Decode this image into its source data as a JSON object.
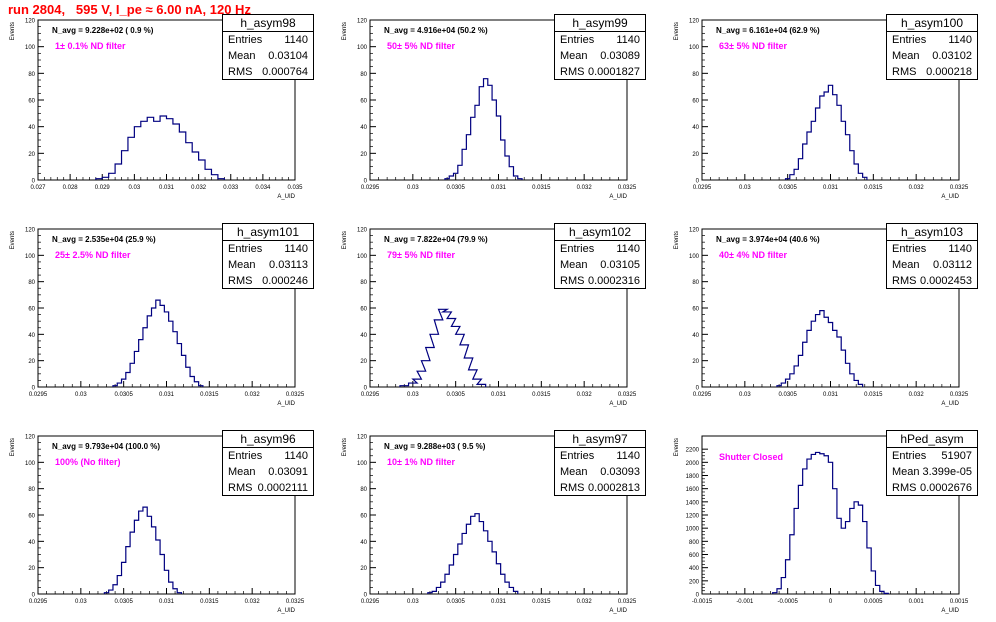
{
  "run_title": "run 2804,   595 V, I_pe ≈ 6.00 nA, 120 Hz",
  "panels": [
    {
      "name": "h_asym98",
      "navg": "N_avg = 9.228e+02 ( 0.9 %)",
      "note": "1± 0.1% ND filter",
      "entries": "1140",
      "mean": "0.03104",
      "rms": "0.000764",
      "ylabel": "Events",
      "xlabel": "A_UID"
    },
    {
      "name": "h_asym99",
      "navg": "N_avg = 4.916e+04 (50.2 %)",
      "note": "50± 5% ND filter",
      "entries": "1140",
      "mean": "0.03089",
      "rms": "0.0001827",
      "ylabel": "Events",
      "xlabel": "A_UID"
    },
    {
      "name": "h_asym100",
      "navg": "N_avg = 6.161e+04 (62.9 %)",
      "note": "63± 5% ND filter",
      "entries": "1140",
      "mean": "0.03102",
      "rms": "0.000218",
      "ylabel": "Events",
      "xlabel": "A_UID"
    },
    {
      "name": "h_asym101",
      "navg": "N_avg = 2.535e+04 (25.9 %)",
      "note": "25± 2.5% ND filter",
      "entries": "1140",
      "mean": "0.03113",
      "rms": "0.000246",
      "ylabel": "Events",
      "xlabel": "A_UID"
    },
    {
      "name": "h_asym102",
      "navg": "N_avg = 7.822e+04 (79.9 %)",
      "note": "79± 5% ND filter",
      "entries": "1140",
      "mean": "0.03105",
      "rms": "0.0002316",
      "ylabel": "Events",
      "xlabel": "A_UID"
    },
    {
      "name": "h_asym103",
      "navg": "N_avg = 3.974e+04 (40.6 %)",
      "note": "40± 4% ND filter",
      "entries": "1140",
      "mean": "0.03112",
      "rms": "0.0002453",
      "ylabel": "Events",
      "xlabel": "A_UID"
    },
    {
      "name": "h_asym96",
      "navg": "N_avg = 9.793e+04 (100.0 %)",
      "note": "100% (No filter)",
      "entries": "1140",
      "mean": "0.03091",
      "rms": "0.0002111",
      "ylabel": "Events",
      "xlabel": "A_UID"
    },
    {
      "name": "h_asym97",
      "navg": "N_avg = 9.288e+03 ( 9.5 %)",
      "note": "10± 1% ND filter",
      "entries": "1140",
      "mean": "0.03093",
      "rms": "0.0002813",
      "ylabel": "Events",
      "xlabel": "A_UID"
    },
    {
      "name": "hPed_asym",
      "navg": "",
      "note": "Shutter Closed",
      "entries": "51907",
      "mean": "3.399e-05",
      "rms": "0.0002676",
      "ylabel": "Events",
      "xlabel": "A_UID"
    }
  ],
  "stats_labels": {
    "entries": "Entries",
    "mean": "Mean",
    "rms": "RMS"
  },
  "colors": {
    "title": "#ff0000",
    "note": "#ff00ff",
    "hist": "#000080",
    "frame": "#000000"
  },
  "chart_data": [
    {
      "type": "histogram",
      "title": "h_asym98",
      "xlim": [
        0.027,
        0.035
      ],
      "ylim": [
        0,
        120
      ],
      "xticks": [
        "0.027",
        "0.028",
        "0.029",
        "0.03",
        "0.031",
        "0.032",
        "0.033",
        "0.034",
        "0.035"
      ],
      "yticks": [
        "0",
        "20",
        "40",
        "60",
        "80",
        "100",
        "120"
      ],
      "stats": {
        "entries": 1140,
        "mean": 0.03104,
        "rms": 0.000764
      },
      "bins": [
        [
          0.0289,
          1
        ],
        [
          0.0291,
          2
        ],
        [
          0.0293,
          5
        ],
        [
          0.0295,
          12
        ],
        [
          0.0297,
          22
        ],
        [
          0.0299,
          32
        ],
        [
          0.0301,
          40
        ],
        [
          0.0303,
          44
        ],
        [
          0.0305,
          47
        ],
        [
          0.0307,
          44
        ],
        [
          0.0309,
          48
        ],
        [
          0.0311,
          46
        ],
        [
          0.0313,
          42
        ],
        [
          0.0315,
          36
        ],
        [
          0.0317,
          28
        ],
        [
          0.0319,
          21
        ],
        [
          0.0321,
          15
        ],
        [
          0.0323,
          8
        ],
        [
          0.0325,
          4
        ],
        [
          0.0327,
          1
        ]
      ]
    },
    {
      "type": "histogram",
      "title": "h_asym99",
      "xlim": [
        0.0295,
        0.0325
      ],
      "ylim": [
        0,
        120
      ],
      "xticks": [
        "0.0295",
        "0.03",
        "0.0305",
        "0.031",
        "0.0315",
        "0.032",
        "0.0325"
      ],
      "yticks": [
        "0",
        "20",
        "40",
        "60",
        "80",
        "100",
        "120"
      ],
      "stats": {
        "entries": 1140,
        "mean": 0.03089,
        "rms": 0.0001827
      },
      "bins": [
        [
          0.0304,
          1
        ],
        [
          0.03045,
          3
        ],
        [
          0.0305,
          5
        ],
        [
          0.03055,
          11
        ],
        [
          0.0306,
          23
        ],
        [
          0.03065,
          34
        ],
        [
          0.0307,
          47
        ],
        [
          0.03075,
          56
        ],
        [
          0.0308,
          70
        ],
        [
          0.03085,
          76
        ],
        [
          0.0309,
          71
        ],
        [
          0.03095,
          60
        ],
        [
          0.031,
          48
        ],
        [
          0.03105,
          30
        ],
        [
          0.0311,
          18
        ],
        [
          0.03115,
          10
        ],
        [
          0.0312,
          3
        ],
        [
          0.03125,
          1
        ]
      ]
    },
    {
      "type": "histogram",
      "title": "h_asym100",
      "xlim": [
        0.0295,
        0.0325
      ],
      "ylim": [
        0,
        120
      ],
      "xticks": [
        "0.0295",
        "0.03",
        "0.0305",
        "0.031",
        "0.0315",
        "0.032",
        "0.0325"
      ],
      "yticks": [
        "0",
        "20",
        "40",
        "60",
        "80",
        "100",
        "120"
      ],
      "stats": {
        "entries": 1140,
        "mean": 0.03102,
        "rms": 0.000218
      },
      "bins": [
        [
          0.0305,
          1
        ],
        [
          0.03055,
          4
        ],
        [
          0.0306,
          8
        ],
        [
          0.03065,
          16
        ],
        [
          0.0307,
          27
        ],
        [
          0.03075,
          36
        ],
        [
          0.0308,
          44
        ],
        [
          0.03085,
          54
        ],
        [
          0.0309,
          63
        ],
        [
          0.03095,
          66
        ],
        [
          0.031,
          71
        ],
        [
          0.03105,
          64
        ],
        [
          0.0311,
          56
        ],
        [
          0.03115,
          44
        ],
        [
          0.0312,
          34
        ],
        [
          0.03125,
          22
        ],
        [
          0.0313,
          12
        ],
        [
          0.03135,
          5
        ],
        [
          0.0314,
          2
        ]
      ]
    },
    {
      "type": "histogram",
      "title": "h_asym101",
      "xlim": [
        0.0295,
        0.0325
      ],
      "ylim": [
        0,
        120
      ],
      "xticks": [
        "0.0295",
        "0.03",
        "0.0305",
        "0.031",
        "0.0315",
        "0.032",
        "0.0325"
      ],
      "yticks": [
        "0",
        "20",
        "40",
        "60",
        "80",
        "100",
        "120"
      ],
      "stats": {
        "entries": 1140,
        "mean": 0.03113,
        "rms": 0.000246
      },
      "bins": [
        [
          0.0304,
          1
        ],
        [
          0.03045,
          3
        ],
        [
          0.0305,
          6
        ],
        [
          0.03055,
          11
        ],
        [
          0.0306,
          18
        ],
        [
          0.03065,
          27
        ],
        [
          0.0307,
          36
        ],
        [
          0.03075,
          45
        ],
        [
          0.0308,
          54
        ],
        [
          0.03085,
          60
        ],
        [
          0.0309,
          66
        ],
        [
          0.03095,
          62
        ],
        [
          0.031,
          57
        ],
        [
          0.03105,
          50
        ],
        [
          0.0311,
          42
        ],
        [
          0.03115,
          33
        ],
        [
          0.0312,
          24
        ],
        [
          0.03125,
          15
        ],
        [
          0.0313,
          8
        ],
        [
          0.03135,
          4
        ],
        [
          0.0314,
          1
        ]
      ]
    },
    {
      "type": "histogram",
      "title": "h_asym102",
      "xlim": [
        0.0295,
        0.0325
      ],
      "ylim": [
        0,
        120
      ],
      "xticks": [
        "0.0295",
        "0.03",
        "0.0305",
        "0.031",
        "0.0315",
        "0.032",
        "0.0325"
      ],
      "yticks": [
        "0",
        "20",
        "40",
        "60",
        "80",
        "100",
        "120"
      ],
      "stats": {
        "entries": 1140,
        "mean": 0.03105,
        "rms": 0.0002316
      },
      "bins": [
        [
          0.0299,
          1
        ],
        [
          0.03,
          3
        ],
        [
          0.03005,
          6
        ],
        [
          0.0301,
          12
        ],
        [
          0.03015,
          20
        ],
        [
          0.0302,
          30
        ],
        [
          0.03025,
          40
        ],
        [
          0.0303,
          51
        ],
        [
          0.03035,
          59
        ],
        [
          0.0304,
          57
        ],
        [
          0.03045,
          52
        ],
        [
          0.0305,
          46
        ],
        [
          0.03055,
          40
        ],
        [
          0.0306,
          32
        ],
        [
          0.03065,
          22
        ],
        [
          0.0307,
          13
        ],
        [
          0.03075,
          6
        ],
        [
          0.0308,
          2
        ]
      ]
    },
    {
      "type": "histogram",
      "title": "h_asym103",
      "xlim": [
        0.0295,
        0.0325
      ],
      "ylim": [
        0,
        120
      ],
      "xticks": [
        "0.0295",
        "0.03",
        "0.0305",
        "0.031",
        "0.0315",
        "0.032",
        "0.0325"
      ],
      "yticks": [
        "0",
        "20",
        "40",
        "60",
        "80",
        "100",
        "120"
      ],
      "stats": {
        "entries": 1140,
        "mean": 0.03112,
        "rms": 0.0002453
      },
      "bins": [
        [
          0.0304,
          1
        ],
        [
          0.03045,
          3
        ],
        [
          0.0305,
          6
        ],
        [
          0.03055,
          10
        ],
        [
          0.0306,
          16
        ],
        [
          0.03065,
          24
        ],
        [
          0.0307,
          34
        ],
        [
          0.03075,
          43
        ],
        [
          0.0308,
          50
        ],
        [
          0.03085,
          55
        ],
        [
          0.0309,
          58
        ],
        [
          0.03095,
          53
        ],
        [
          0.031,
          49
        ],
        [
          0.03105,
          43
        ],
        [
          0.0311,
          38
        ],
        [
          0.03115,
          28
        ],
        [
          0.0312,
          18
        ],
        [
          0.03125,
          10
        ],
        [
          0.0313,
          5
        ],
        [
          0.03135,
          2
        ]
      ]
    },
    {
      "type": "histogram",
      "title": "h_asym96",
      "xlim": [
        0.0295,
        0.0325
      ],
      "ylim": [
        0,
        120
      ],
      "xticks": [
        "0.0295",
        "0.03",
        "0.0305",
        "0.031",
        "0.0315",
        "0.032",
        "0.0325"
      ],
      "yticks": [
        "0",
        "20",
        "40",
        "60",
        "80",
        "100",
        "120"
      ],
      "stats": {
        "entries": 1140,
        "mean": 0.03091,
        "rms": 0.0002111
      },
      "bins": [
        [
          0.0303,
          1
        ],
        [
          0.03035,
          3
        ],
        [
          0.0304,
          7
        ],
        [
          0.03045,
          14
        ],
        [
          0.0305,
          24
        ],
        [
          0.03055,
          36
        ],
        [
          0.0306,
          47
        ],
        [
          0.03065,
          56
        ],
        [
          0.0307,
          63
        ],
        [
          0.03075,
          66
        ],
        [
          0.0308,
          59
        ],
        [
          0.03085,
          51
        ],
        [
          0.0309,
          41
        ],
        [
          0.03095,
          30
        ],
        [
          0.031,
          18
        ],
        [
          0.03105,
          9
        ],
        [
          0.0311,
          4
        ],
        [
          0.03115,
          1
        ]
      ]
    },
    {
      "type": "histogram",
      "title": "h_asym97",
      "xlim": [
        0.0295,
        0.0325
      ],
      "ylim": [
        0,
        120
      ],
      "xticks": [
        "0.0295",
        "0.03",
        "0.0305",
        "0.031",
        "0.0315",
        "0.032",
        "0.0325"
      ],
      "yticks": [
        "0",
        "20",
        "40",
        "60",
        "80",
        "100",
        "120"
      ],
      "stats": {
        "entries": 1140,
        "mean": 0.03093,
        "rms": 0.0002813
      },
      "bins": [
        [
          0.0302,
          1
        ],
        [
          0.03025,
          2
        ],
        [
          0.0303,
          5
        ],
        [
          0.03035,
          9
        ],
        [
          0.0304,
          15
        ],
        [
          0.03045,
          22
        ],
        [
          0.0305,
          30
        ],
        [
          0.03055,
          38
        ],
        [
          0.0306,
          46
        ],
        [
          0.03065,
          53
        ],
        [
          0.0307,
          59
        ],
        [
          0.03075,
          61
        ],
        [
          0.0308,
          55
        ],
        [
          0.03085,
          48
        ],
        [
          0.0309,
          40
        ],
        [
          0.03095,
          32
        ],
        [
          0.031,
          23
        ],
        [
          0.03105,
          15
        ],
        [
          0.0311,
          9
        ],
        [
          0.03115,
          5
        ],
        [
          0.0312,
          2
        ]
      ]
    },
    {
      "type": "histogram",
      "title": "hPed_asym",
      "xlim": [
        -0.0015,
        0.0015
      ],
      "ylim": [
        0,
        2400
      ],
      "xticks": [
        "-0.0015",
        "-0.001",
        "-0.0005",
        "0",
        "0.0005",
        "0.001",
        "0.0015"
      ],
      "yticks": [
        "0",
        "200",
        "400",
        "600",
        "800",
        "1000",
        "1200",
        "1400",
        "1600",
        "1800",
        "2000",
        "2200"
      ],
      "stats": {
        "entries": 51907,
        "mean": 3.399e-05,
        "rms": 0.0002676
      },
      "bins": [
        [
          -0.00065,
          20
        ],
        [
          -0.0006,
          80
        ],
        [
          -0.00055,
          250
        ],
        [
          -0.0005,
          520
        ],
        [
          -0.00045,
          900
        ],
        [
          -0.0004,
          1300
        ],
        [
          -0.00035,
          1650
        ],
        [
          -0.0003,
          1900
        ],
        [
          -0.00025,
          2050
        ],
        [
          -0.0002,
          2120
        ],
        [
          -0.00015,
          2150
        ],
        [
          -0.0001,
          2130
        ],
        [
          -5e-05,
          2100
        ],
        [
          0,
          2000
        ],
        [
          5e-05,
          1600
        ],
        [
          0.0001,
          1150
        ],
        [
          0.00015,
          1000
        ],
        [
          0.0002,
          1100
        ],
        [
          0.00025,
          1300
        ],
        [
          0.0003,
          1400
        ],
        [
          0.00035,
          1350
        ],
        [
          0.0004,
          1100
        ],
        [
          0.00045,
          700
        ],
        [
          0.0005,
          350
        ],
        [
          0.00055,
          130
        ],
        [
          0.0006,
          40
        ],
        [
          0.00065,
          10
        ]
      ]
    }
  ]
}
